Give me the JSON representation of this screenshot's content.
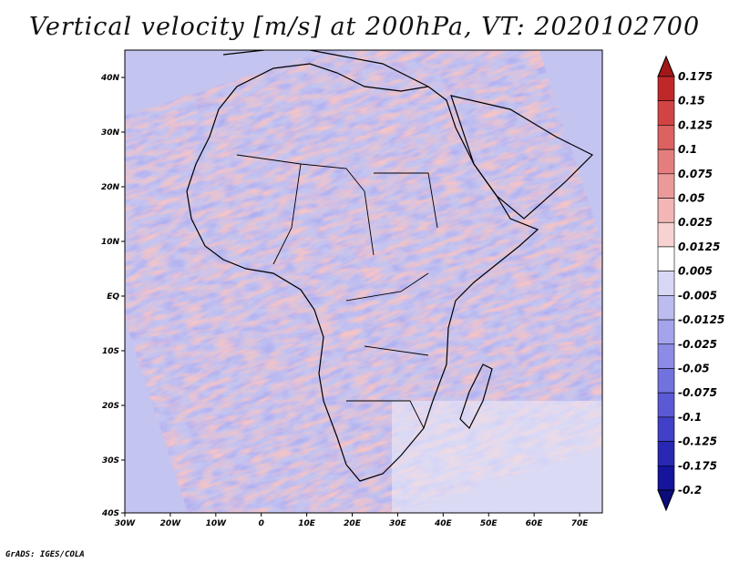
{
  "title": "Vertical velocity [m/s] at 200hPa, VT: 2020102700",
  "footer": "GrADS: IGES/COLA",
  "map": {
    "lon_range": [
      -30,
      75
    ],
    "lat_range": [
      -40,
      45
    ],
    "lon_ticks": [
      "30W",
      "20W",
      "10W",
      "0",
      "10E",
      "20E",
      "30E",
      "40E",
      "50E",
      "60E",
      "70E"
    ],
    "lat_ticks": [
      "40N",
      "30N",
      "20N",
      "10N",
      "EQ",
      "10S",
      "20S",
      "30S",
      "40S"
    ]
  },
  "colorbar": {
    "labels": [
      "0.175",
      "0.15",
      "0.125",
      "0.1",
      "0.075",
      "0.05",
      "0.025",
      "0.0125",
      "0.005",
      "-0.005",
      "-0.0125",
      "-0.025",
      "-0.05",
      "-0.075",
      "-0.1",
      "-0.125",
      "-0.175",
      "-0.2"
    ],
    "colors": [
      "#a01818",
      "#c02828",
      "#d24444",
      "#dc6262",
      "#e47e7e",
      "#eb9a9a",
      "#f2b6b6",
      "#f7d2d2",
      "#ffffff",
      "#d8d8f4",
      "#bcbcf0",
      "#a4a4ec",
      "#8c8ce6",
      "#7272de",
      "#5a5ad4",
      "#4040c8",
      "#2828b4",
      "#14149c",
      "#0c0c7c"
    ]
  }
}
